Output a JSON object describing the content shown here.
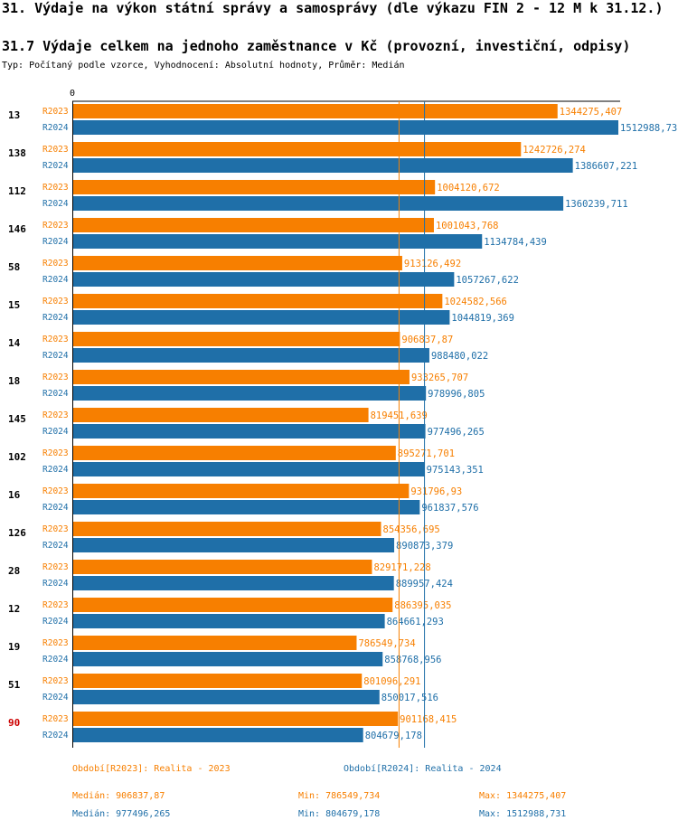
{
  "header": {
    "title": "31. Výdaje na výkon státní správy a samosprávy (dle výkazu FIN 2 - 12 M k 31.12.)",
    "subtitle": "31.7 Výdaje celkem na jednoho zaměstnance v Kč (provozní, investiční, odpisy)",
    "type_line": "Typ: Počítaný podle vzorce, Vyhodnocení: Absolutní hodnoty, Průměr: Medián"
  },
  "colors": {
    "r2023": "#f77f00",
    "r2024": "#1f6fa8",
    "highlight": "#cc0000"
  },
  "chart_data": {
    "type": "bar",
    "orientation": "horizontal",
    "axis_zero_label": "0",
    "xlim": [
      0,
      1512988.731
    ],
    "highlight_group": "90",
    "series_names": [
      "R2023",
      "R2024"
    ],
    "groups": [
      {
        "label": "13",
        "r2023": 1344275.407,
        "r2024": 1512988.731,
        "t2023": "1344275,407",
        "t2024": "1512988,731"
      },
      {
        "label": "138",
        "r2023": 1242726.274,
        "r2024": 1386607.221,
        "t2023": "1242726,274",
        "t2024": "1386607,221"
      },
      {
        "label": "112",
        "r2023": 1004120.672,
        "r2024": 1360239.711,
        "t2023": "1004120,672",
        "t2024": "1360239,711"
      },
      {
        "label": "146",
        "r2023": 1001043.768,
        "r2024": 1134784.439,
        "t2023": "1001043,768",
        "t2024": "1134784,439"
      },
      {
        "label": "58",
        "r2023": 913126.492,
        "r2024": 1057267.622,
        "t2023": "913126,492",
        "t2024": "1057267,622"
      },
      {
        "label": "15",
        "r2023": 1024582.566,
        "r2024": 1044819.369,
        "t2023": "1024582,566",
        "t2024": "1044819,369"
      },
      {
        "label": "14",
        "r2023": 906837.87,
        "r2024": 988480.022,
        "t2023": "906837,87",
        "t2024": "988480,022"
      },
      {
        "label": "18",
        "r2023": 933265.707,
        "r2024": 978996.805,
        "t2023": "933265,707",
        "t2024": "978996,805"
      },
      {
        "label": "145",
        "r2023": 819451.639,
        "r2024": 977496.265,
        "t2023": "819451,639",
        "t2024": "977496,265"
      },
      {
        "label": "102",
        "r2023": 895271.701,
        "r2024": 975143.351,
        "t2023": "895271,701",
        "t2024": "975143,351"
      },
      {
        "label": "16",
        "r2023": 931796.93,
        "r2024": 961837.576,
        "t2023": "931796,93",
        "t2024": "961837,576"
      },
      {
        "label": "126",
        "r2023": 854356.695,
        "r2024": 890873.379,
        "t2023": "854356,695",
        "t2024": "890873,379"
      },
      {
        "label": "28",
        "r2023": 829171.228,
        "r2024": 889957.424,
        "t2023": "829171,228",
        "t2024": "889957,424"
      },
      {
        "label": "12",
        "r2023": 886395.035,
        "r2024": 864661.293,
        "t2023": "886395,035",
        "t2024": "864661,293"
      },
      {
        "label": "19",
        "r2023": 786549.734,
        "r2024": 858768.956,
        "t2023": "786549,734",
        "t2024": "858768,956"
      },
      {
        "label": "51",
        "r2023": 801096.291,
        "r2024": 850017.516,
        "t2023": "801096,291",
        "t2024": "850017,516"
      },
      {
        "label": "90",
        "r2023": 901168.415,
        "r2024": 804679.178,
        "t2023": "901168,415",
        "t2024": "804679,178"
      }
    ],
    "medians": {
      "r2023": 906837.87,
      "r2024": 977496.265
    }
  },
  "legend": {
    "r2023": "Období[R2023]: Realita - 2023",
    "r2024": "Období[R2024]: Realita - 2024"
  },
  "stats": {
    "r2023": {
      "median": "Medián: 906837,87",
      "min": "Min: 786549,734",
      "max": "Max: 1344275,407"
    },
    "r2024": {
      "median": "Medián: 977496,265",
      "min": "Min: 804679,178",
      "max": "Max: 1512988,731"
    }
  }
}
